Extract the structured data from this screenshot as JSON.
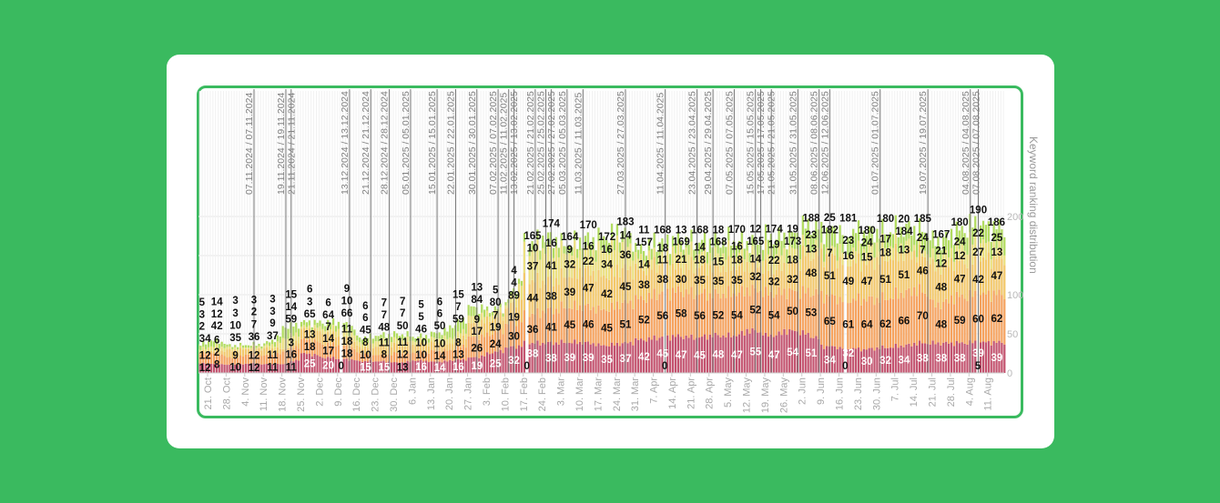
{
  "chart_data": {
    "type": "bar",
    "stacked": true,
    "ylabel": "Keyword ranking distribution",
    "ylim": [
      0,
      200
    ],
    "yticks": [
      "0",
      "50",
      "100",
      "200"
    ],
    "start_date": "14.10.2024",
    "series_names": [
      "red",
      "orange",
      "yellow-orange",
      "yellow",
      "green"
    ],
    "colors": [
      "#c4536f",
      "#f6a35f",
      "#f3c86a",
      "#ece07d",
      "#b2dc5f"
    ],
    "weeks": [
      {
        "total": 34,
        "segments": [
          12,
          12,
          2,
          3,
          5
        ]
      },
      {
        "total": 42,
        "segments": [
          12,
          14,
          2,
          6,
          8
        ]
      },
      {
        "total": 35,
        "segments": [
          10,
          9,
          10,
          3,
          3
        ]
      },
      {
        "total": 36,
        "segments": [
          12,
          12,
          7,
          2,
          3
        ]
      },
      {
        "total": 37,
        "segments": [
          11,
          11,
          9,
          3,
          3
        ]
      },
      {
        "total": 59,
        "segments": [
          11,
          16,
          3,
          14,
          15
        ]
      },
      {
        "total": 65,
        "segments": [
          25,
          18,
          13,
          3,
          6
        ]
      },
      {
        "total": 64,
        "segments": [
          20,
          17,
          14,
          6,
          7
        ]
      },
      {
        "total": 66,
        "segments": [
          18,
          18,
          11,
          10,
          9
        ]
      },
      {
        "total": 45,
        "segments": [
          15,
          10,
          8,
          6,
          6
        ]
      },
      {
        "total": 48,
        "segments": [
          15,
          8,
          11,
          7,
          7
        ]
      },
      {
        "total": 50,
        "segments": [
          13,
          12,
          11,
          7,
          7
        ]
      },
      {
        "total": 46,
        "segments": [
          16,
          10,
          10,
          5,
          5
        ]
      },
      {
        "total": 50,
        "segments": [
          14,
          14,
          10,
          6,
          6
        ]
      },
      {
        "total": 59,
        "segments": [
          16,
          13,
          8,
          7,
          15
        ]
      },
      {
        "total": 84,
        "segments": [
          19,
          26,
          17,
          9,
          13
        ]
      },
      {
        "total": 80,
        "segments": [
          25,
          24,
          19,
          7,
          5
        ]
      },
      {
        "total": 89,
        "segments": [
          32,
          30,
          19,
          4,
          4
        ]
      },
      {
        "total": 165,
        "segments": [
          38,
          36,
          44,
          37,
          10
        ]
      },
      {
        "total": 174,
        "segments": [
          38,
          41,
          38,
          41,
          16
        ]
      },
      {
        "total": 164,
        "segments": [
          39,
          45,
          39,
          32,
          9
        ]
      },
      {
        "total": 170,
        "segments": [
          39,
          46,
          47,
          22,
          16
        ]
      },
      {
        "total": 172,
        "segments": [
          35,
          45,
          42,
          34,
          16
        ]
      },
      {
        "total": 183,
        "segments": [
          37,
          51,
          45,
          36,
          14
        ]
      },
      {
        "total": 157,
        "segments": [
          42,
          52,
          38,
          14,
          11
        ]
      },
      {
        "total": 168,
        "segments": [
          45,
          56,
          38,
          11,
          18
        ]
      },
      {
        "total": 169,
        "segments": [
          47,
          58,
          30,
          21,
          13
        ]
      },
      {
        "total": 168,
        "segments": [
          45,
          56,
          35,
          18,
          14
        ]
      },
      {
        "total": 168,
        "segments": [
          48,
          52,
          35,
          15,
          18
        ]
      },
      {
        "total": 170,
        "segments": [
          47,
          54,
          35,
          18,
          16
        ]
      },
      {
        "total": 165,
        "segments": [
          55,
          52,
          32,
          14,
          12
        ]
      },
      {
        "total": 174,
        "segments": [
          47,
          54,
          32,
          22,
          19
        ]
      },
      {
        "total": 173,
        "segments": [
          54,
          50,
          32,
          18,
          19
        ]
      },
      {
        "total": 188,
        "segments": [
          51,
          53,
          48,
          13,
          23
        ]
      },
      {
        "total": 182,
        "segments": [
          34,
          65,
          51,
          7,
          25
        ]
      },
      {
        "total": 181,
        "segments": [
          32,
          61,
          49,
          16,
          23
        ]
      },
      {
        "total": 180,
        "segments": [
          30,
          64,
          47,
          15,
          24
        ]
      },
      {
        "total": 180,
        "segments": [
          32,
          62,
          51,
          18,
          17
        ]
      },
      {
        "total": 184,
        "segments": [
          34,
          66,
          51,
          13,
          20
        ]
      },
      {
        "total": 185,
        "segments": [
          38,
          70,
          46,
          7,
          24
        ]
      },
      {
        "total": 167,
        "segments": [
          38,
          48,
          48,
          12,
          21
        ]
      },
      {
        "total": 180,
        "segments": [
          38,
          59,
          47,
          12,
          24
        ]
      },
      {
        "total": 190,
        "segments": [
          39,
          60,
          42,
          27,
          22
        ]
      },
      {
        "total": 186,
        "segments": [
          39,
          62,
          47,
          13,
          25
        ]
      }
    ],
    "zero_markers": [
      {
        "date": "10.12.2024",
        "label": "0"
      },
      {
        "date": "18.02.2025",
        "label": "0"
      },
      {
        "date": "11.04.2025",
        "label": "0"
      },
      {
        "date": "18.06.2025",
        "label": "0"
      },
      {
        "date": "07.08.2025",
        "label": "5"
      }
    ],
    "x_ticks": [
      {
        "date": "21.10.2024",
        "label": "21. Oct"
      },
      {
        "date": "28.10.2024",
        "label": "28. Oct"
      },
      {
        "date": "04.11.2024",
        "label": "4. Nov"
      },
      {
        "date": "11.11.2024",
        "label": "11. Nov"
      },
      {
        "date": "18.11.2024",
        "label": "18. Nov"
      },
      {
        "date": "25.11.2024",
        "label": "25. Nov"
      },
      {
        "date": "02.12.2024",
        "label": "2. Dec"
      },
      {
        "date": "09.12.2024",
        "label": "9. Dec"
      },
      {
        "date": "16.12.2024",
        "label": "16. Dec"
      },
      {
        "date": "23.12.2024",
        "label": "23. Dec"
      },
      {
        "date": "30.12.2024",
        "label": "30. Dec"
      },
      {
        "date": "06.01.2025",
        "label": "6. Jan"
      },
      {
        "date": "13.01.2025",
        "label": "13. Jan"
      },
      {
        "date": "20.01.2025",
        "label": "20. Jan"
      },
      {
        "date": "27.01.2025",
        "label": "27. Jan"
      },
      {
        "date": "03.02.2025",
        "label": "3. Feb"
      },
      {
        "date": "10.02.2025",
        "label": "10. Feb"
      },
      {
        "date": "17.02.2025",
        "label": "17. Feb"
      },
      {
        "date": "24.02.2025",
        "label": "24. Feb"
      },
      {
        "date": "03.03.2025",
        "label": "3. Mar"
      },
      {
        "date": "10.03.2025",
        "label": "10. Mar"
      },
      {
        "date": "17.03.2025",
        "label": "17. Mar"
      },
      {
        "date": "24.03.2025",
        "label": "24. Mar"
      },
      {
        "date": "31.03.2025",
        "label": "31. Mar"
      },
      {
        "date": "07.04.2025",
        "label": "7. Apr"
      },
      {
        "date": "14.04.2025",
        "label": "14. Apr"
      },
      {
        "date": "21.04.2025",
        "label": "21. Apr"
      },
      {
        "date": "28.04.2025",
        "label": "28. Apr"
      },
      {
        "date": "05.05.2025",
        "label": "5. May"
      },
      {
        "date": "12.05.2025",
        "label": "12. May"
      },
      {
        "date": "19.05.2025",
        "label": "19. May"
      },
      {
        "date": "26.05.2025",
        "label": "26. May"
      },
      {
        "date": "02.06.2025",
        "label": "2. Jun"
      },
      {
        "date": "09.06.2025",
        "label": "9. Jun"
      },
      {
        "date": "16.06.2025",
        "label": "16. Jun"
      },
      {
        "date": "23.06.2025",
        "label": "23. Jun"
      },
      {
        "date": "30.06.2025",
        "label": "30. Jun"
      },
      {
        "date": "07.07.2025",
        "label": "7. Jul"
      },
      {
        "date": "14.07.2025",
        "label": "14. Jul"
      },
      {
        "date": "21.07.2025",
        "label": "21. Jul"
      },
      {
        "date": "28.07.2025",
        "label": "28. Jul"
      },
      {
        "date": "04.08.2025",
        "label": "4. Aug"
      },
      {
        "date": "11.08.2025",
        "label": "11. Aug"
      }
    ],
    "annotations": [
      "07.11.2024 / 07.11.2024",
      "19.11.2024 / 19.11.2024",
      "21.11.2024 / 21.11.2024",
      "13.12.2024 / 13.12.2024",
      "21.12.2024 / 21.12.2024",
      "28.12.2024 / 28.12.2024",
      "05.01.2025 / 05.01.2025",
      "15.01.2025 / 15.01.2025",
      "22.01.2025 / 22.01.2025",
      "30.01.2025 / 30.01.2025",
      "07.02.2025 / 07.02.2025",
      "11.02.2025 / 11.02.2025",
      "13.02.2025 / 13.02.2025",
      "21.02.2025 / 21.02.2025",
      "25.02.2025 / 25.02.2025",
      "27.02.2025 / 27.02.2025",
      "05.03.2025 / 05.03.2025",
      "11.03.2025 / 11.03.2025",
      "27.03.2025 / 27.03.2025",
      "11.04.2025 / 11.04.2025",
      "23.04.2025 / 23.04.2025",
      "29.04.2025 / 29.04.2025",
      "07.05.2025 / 07.05.2025",
      "15.05.2025 / 15.05.2025",
      "17.05.2025 / 17.05.2025",
      "21.05.2025 / 21.05.2025",
      "31.05.2025 / 31.05.2025",
      "08.06.2025 / 08.06.2025",
      "12.06.2025 / 12.06.2025",
      "01.07.2025 / 01.07.2025",
      "19.07.2025 / 19.07.2025",
      "04.08.2025 / 04.08.2025",
      "07.08.2025 / 07.08.2025"
    ]
  }
}
